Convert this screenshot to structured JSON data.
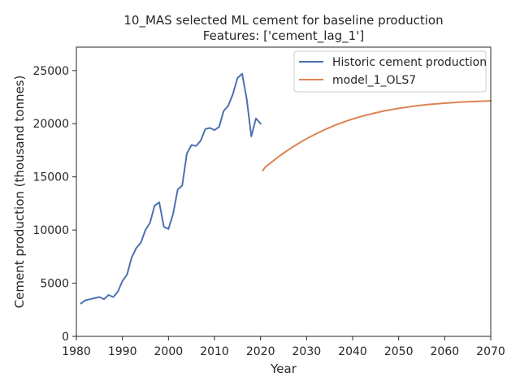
{
  "chart_data": {
    "type": "line",
    "title": "10_MAS selected ML cement for baseline production",
    "subtitle": "Features: ['cement_lag_1']",
    "xlabel": "Year",
    "ylabel": "Cement production (thousand tonnes)",
    "xlim": [
      1980,
      2070
    ],
    "ylim": [
      0,
      27200
    ],
    "xticks": [
      1980,
      1990,
      2000,
      2010,
      2020,
      2030,
      2040,
      2050,
      2060,
      2070
    ],
    "yticks": [
      0,
      5000,
      10000,
      15000,
      20000,
      25000
    ],
    "grid": false,
    "legend_position": "top-right",
    "series": [
      {
        "name": "Historic cement production",
        "color": "#4c72b0",
        "x": [
          1981,
          1982,
          1983,
          1984,
          1985,
          1986,
          1987,
          1988,
          1989,
          1990,
          1991,
          1992,
          1993,
          1994,
          1995,
          1996,
          1997,
          1998,
          1999,
          2000,
          2001,
          2002,
          2003,
          2004,
          2005,
          2006,
          2007,
          2008,
          2009,
          2010,
          2011,
          2012,
          2013,
          2014,
          2015,
          2016,
          2017,
          2018,
          2019,
          2020
        ],
        "y": [
          3100,
          3400,
          3500,
          3600,
          3700,
          3500,
          3900,
          3700,
          4200,
          5200,
          5800,
          7400,
          8300,
          8800,
          10000,
          10700,
          12300,
          12600,
          10300,
          10100,
          11500,
          13800,
          14200,
          17200,
          18000,
          17900,
          18400,
          19500,
          19600,
          19400,
          19700,
          21200,
          21700,
          22800,
          24300,
          24700,
          22300,
          18800,
          20500,
          20000
        ]
      },
      {
        "name": "model_1_OLS7",
        "color": "#dd8452",
        "x": [
          2020.5,
          2021,
          2022,
          2023,
          2024,
          2025,
          2026,
          2027,
          2028,
          2029,
          2030,
          2031,
          2032,
          2033,
          2034,
          2035,
          2036,
          2037,
          2038,
          2039,
          2040,
          2041,
          2042,
          2043,
          2044,
          2045,
          2046,
          2047,
          2048,
          2049,
          2050,
          2051,
          2052,
          2053,
          2054,
          2055,
          2056,
          2057,
          2058,
          2059,
          2060,
          2061,
          2062,
          2063,
          2064,
          2065,
          2066,
          2067,
          2068,
          2069,
          2070
        ],
        "y": [
          15600,
          15900,
          16250,
          16590,
          16920,
          17230,
          17530,
          17810,
          18080,
          18340,
          18590,
          18820,
          19040,
          19250,
          19450,
          19640,
          19820,
          19990,
          20150,
          20300,
          20440,
          20570,
          20690,
          20810,
          20920,
          21020,
          21120,
          21210,
          21290,
          21370,
          21440,
          21510,
          21570,
          21630,
          21690,
          21740,
          21780,
          21820,
          21860,
          21900,
          21930,
          21960,
          21990,
          22020,
          22040,
          22060,
          22080,
          22100,
          22120,
          22130,
          22150
        ]
      }
    ]
  }
}
